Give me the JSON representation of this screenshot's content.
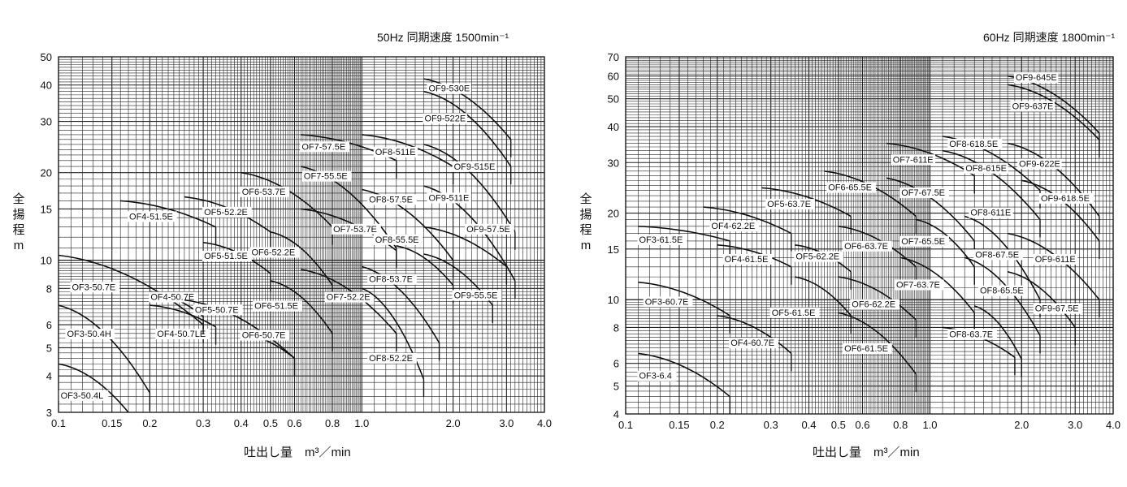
{
  "chart_data": [
    {
      "type": "line",
      "title": "50Hz 同期速度 1500min⁻¹",
      "xlabel": "吐出し量　m³／min",
      "ylabel": "全揚程 m",
      "xscale": "log",
      "yscale": "log",
      "xlim": [
        0.1,
        4.0
      ],
      "ylim": [
        3,
        50
      ],
      "grid": true,
      "xticks": [
        "0.1",
        "0.15",
        "0.2",
        "0.3",
        "0.4",
        "0.5",
        "0.6",
        "0.8",
        "1.0",
        "2.0",
        "3.0",
        "4.0"
      ],
      "yticks": [
        "3",
        "4",
        "5",
        "6",
        "8",
        "10",
        "15",
        "20",
        "30",
        "40",
        "50"
      ],
      "series": [
        {
          "name": "OF3-50.4L",
          "label_at": [
            0.101,
            3.35
          ],
          "curve": [
            [
              0.1,
              4.4
            ],
            [
              0.17,
              3.0
            ]
          ]
        },
        {
          "name": "OF3-50.4H",
          "label_at": [
            0.106,
            5.45
          ],
          "curve": [
            [
              0.1,
              7.0
            ],
            [
              0.2,
              3.5
            ]
          ]
        },
        {
          "name": "OF3-50.7E",
          "label_at": [
            0.11,
            7.9
          ],
          "curve": [
            [
              0.1,
              10.4
            ],
            [
              0.3,
              6.0
            ]
          ]
        },
        {
          "name": "OF4-51.5E",
          "label_at": [
            0.17,
            13.8
          ],
          "curve": [
            [
              0.16,
              16
            ],
            [
              0.33,
              13
            ]
          ]
        },
        {
          "name": "OF4-50.7LE",
          "label_at": [
            0.21,
            5.45
          ],
          "curve": [
            [
              0.2,
              7.0
            ],
            [
              0.33,
              5.9
            ]
          ]
        },
        {
          "name": "OF4-50.7E",
          "label_at": [
            0.2,
            7.3
          ],
          "curve": [
            [
              0.2,
              7.8
            ],
            [
              0.3,
              6.4
            ]
          ]
        },
        {
          "name": "OF5-52.2E",
          "label_at": [
            0.3,
            14.3
          ],
          "curve": [
            [
              0.26,
              16.5
            ],
            [
              0.5,
              12.5
            ]
          ]
        },
        {
          "name": "OF5-51.5E",
          "label_at": [
            0.3,
            10.1
          ],
          "curve": [
            [
              0.3,
              11.5
            ],
            [
              0.5,
              9.0
            ]
          ]
        },
        {
          "name": "OF5-50.7E",
          "label_at": [
            0.28,
            6.6
          ],
          "curve": [
            [
              0.26,
              7.3
            ],
            [
              0.6,
              4.6
            ]
          ]
        },
        {
          "name": "OF6-53.7E",
          "label_at": [
            0.4,
            16.8
          ],
          "curve": [
            [
              0.4,
              20
            ],
            [
              0.8,
              13
            ]
          ]
        },
        {
          "name": "OF6-52.2E",
          "label_at": [
            0.43,
            10.4
          ],
          "curve": [
            [
              0.5,
              12.5
            ],
            [
              0.8,
              8.2
            ]
          ]
        },
        {
          "name": "OF6-51.5E",
          "label_at": [
            0.44,
            6.8
          ],
          "curve": [
            [
              0.5,
              8.5
            ],
            [
              0.8,
              5.6
            ]
          ]
        },
        {
          "name": "OF6-50.7E",
          "label_at": [
            0.4,
            5.4
          ],
          "curve": [
            [
              0.4,
              5.6
            ],
            [
              0.6,
              4.6
            ]
          ]
        },
        {
          "name": "OF7-57.5E",
          "label_at": [
            0.63,
            24
          ],
          "curve": [
            [
              0.63,
              27
            ],
            [
              1.3,
              22
            ]
          ]
        },
        {
          "name": "OF7-55.5E",
          "label_at": [
            0.64,
            19
          ],
          "curve": [
            [
              0.63,
              21
            ],
            [
              1.3,
              11
            ]
          ]
        },
        {
          "name": "OF7-53.7E",
          "label_at": [
            0.8,
            12.5
          ],
          "curve": [
            [
              0.63,
              15
            ],
            [
              1.3,
              10.8
            ]
          ]
        },
        {
          "name": "OF7-52.2E",
          "label_at": [
            0.76,
            7.3
          ],
          "curve": [
            [
              0.63,
              9.3
            ],
            [
              1.3,
              5.6
            ]
          ]
        },
        {
          "name": "OF8-511E",
          "label_at": [
            1.1,
            23
          ],
          "curve": [
            [
              1.0,
              27
            ],
            [
              2.0,
              21
            ]
          ]
        },
        {
          "name": "OF8-57.5E",
          "label_at": [
            1.05,
            15.8
          ],
          "curve": [
            [
              1.0,
              17.5
            ],
            [
              2.0,
              10
            ]
          ]
        },
        {
          "name": "OF8-55.5E",
          "label_at": [
            1.1,
            11.5
          ],
          "curve": [
            [
              1.3,
              11.2
            ],
            [
              2.0,
              8.2
            ]
          ]
        },
        {
          "name": "OF8-53.7E",
          "label_at": [
            1.05,
            8.4
          ],
          "curve": [
            [
              1.0,
              9.5
            ],
            [
              1.8,
              5.2
            ]
          ]
        },
        {
          "name": "OF8-52.2E",
          "label_at": [
            1.05,
            4.5
          ],
          "curve": [
            [
              1.0,
              8.0
            ],
            [
              1.6,
              3.9
            ]
          ]
        },
        {
          "name": "OF9-530E",
          "label_at": [
            1.65,
            38
          ],
          "curve": [
            [
              1.6,
              42
            ],
            [
              3.1,
              26
            ]
          ]
        },
        {
          "name": "OF9-522E",
          "label_at": [
            1.6,
            30
          ],
          "curve": [
            [
              1.6,
              38
            ],
            [
              3.1,
              21
            ]
          ]
        },
        {
          "name": "OF9-515E",
          "label_at": [
            2.0,
            20.5
          ],
          "curve": [
            [
              1.6,
              25
            ],
            [
              3.2,
              12.5
            ]
          ]
        },
        {
          "name": "OF9-511E",
          "label_at": [
            1.65,
            16
          ],
          "curve": [
            [
              1.6,
              18
            ],
            [
              3.2,
              8.5
            ]
          ]
        },
        {
          "name": "OF9-57.5E",
          "label_at": [
            2.2,
            12.5
          ],
          "curve": [
            [
              1.6,
              13
            ],
            [
              3.0,
              9.5
            ]
          ]
        },
        {
          "name": "OF9-55.5E",
          "label_at": [
            2.0,
            7.4
          ],
          "curve": [
            [
              1.6,
              10.5
            ],
            [
              2.7,
              7.0
            ]
          ]
        }
      ]
    },
    {
      "type": "line",
      "title": "60Hz 同期速度 1800min⁻¹",
      "xlabel": "吐出し量　m³／min",
      "ylabel": "全揚程 m",
      "xscale": "log",
      "yscale": "log",
      "xlim": [
        0.1,
        4.0
      ],
      "ylim": [
        4,
        70
      ],
      "grid": true,
      "xticks": [
        "0.1",
        "0.15",
        "0.2",
        "0.3",
        "0.4",
        "0.5",
        "0.6",
        "0.8",
        "1.0",
        "2.0",
        "3.0",
        "4.0"
      ],
      "yticks": [
        "4",
        "5",
        "6",
        "8",
        "10",
        "15",
        "20",
        "30",
        "40",
        "50",
        "60",
        "70"
      ],
      "series": [
        {
          "name": "OF3-6.4",
          "label_at": [
            0.11,
            5.3
          ],
          "curve": [
            [
              0.11,
              6.5
            ],
            [
              0.22,
              4.6
            ]
          ]
        },
        {
          "name": "OF3-60.7E",
          "label_at": [
            0.115,
            9.6
          ],
          "curve": [
            [
              0.11,
              11.5
            ],
            [
              0.22,
              8.8
            ]
          ]
        },
        {
          "name": "OF3-61.5E",
          "label_at": [
            0.11,
            15.8
          ],
          "curve": [
            [
              0.11,
              18
            ],
            [
              0.22,
              16
            ]
          ]
        },
        {
          "name": "OF4-62.2E",
          "label_at": [
            0.19,
            17.6
          ],
          "curve": [
            [
              0.18,
              21
            ],
            [
              0.35,
              17
            ]
          ]
        },
        {
          "name": "OF4-61.5E",
          "label_at": [
            0.21,
            13.5
          ],
          "curve": [
            [
              0.2,
              15.5
            ],
            [
              0.35,
              13
            ]
          ]
        },
        {
          "name": "OF4-60.7E",
          "label_at": [
            0.22,
            6.9
          ],
          "curve": [
            [
              0.2,
              8.8
            ],
            [
              0.35,
              6.5
            ]
          ]
        },
        {
          "name": "OF5-63.7E",
          "label_at": [
            0.29,
            21
          ],
          "curve": [
            [
              0.28,
              24.5
            ],
            [
              0.55,
              19.5
            ]
          ]
        },
        {
          "name": "OF5-62.2E",
          "label_at": [
            0.36,
            13.8
          ],
          "curve": [
            [
              0.36,
              15.5
            ],
            [
              0.55,
              12.5
            ]
          ]
        },
        {
          "name": "OF5-61.5E",
          "label_at": [
            0.3,
            8.8
          ],
          "curve": [
            [
              0.36,
              12
            ],
            [
              0.55,
              8.8
            ]
          ]
        },
        {
          "name": "OF6-65.5E",
          "label_at": [
            0.46,
            24
          ],
          "curve": [
            [
              0.45,
              28
            ],
            [
              0.9,
              19.5
            ]
          ]
        },
        {
          "name": "OF6-63.7E",
          "label_at": [
            0.52,
            15
          ],
          "curve": [
            [
              0.5,
              18
            ],
            [
              0.9,
              13
            ]
          ]
        },
        {
          "name": "OF6-62.2E",
          "label_at": [
            0.55,
            9.4
          ],
          "curve": [
            [
              0.5,
              12
            ],
            [
              0.9,
              8.5
            ]
          ]
        },
        {
          "name": "OF6-61.5E",
          "label_at": [
            0.52,
            6.6
          ],
          "curve": [
            [
              0.5,
              9
            ],
            [
              0.9,
              5.5
            ]
          ]
        },
        {
          "name": "OF7-611E",
          "label_at": [
            0.75,
            30
          ],
          "curve": [
            [
              0.72,
              35
            ],
            [
              1.4,
              27
            ]
          ]
        },
        {
          "name": "OF7-67.5E",
          "label_at": [
            0.8,
            23
          ],
          "curve": [
            [
              0.72,
              26.5
            ],
            [
              1.4,
              16
            ]
          ]
        },
        {
          "name": "OF7-65.5E",
          "label_at": [
            0.8,
            15.6
          ],
          "curve": [
            [
              0.9,
              19
            ],
            [
              1.4,
              13
            ]
          ]
        },
        {
          "name": "OF7-63.7E",
          "label_at": [
            0.77,
            11
          ],
          "curve": [
            [
              0.8,
              14
            ],
            [
              1.4,
              9
            ]
          ]
        },
        {
          "name": "OF8-618.5E",
          "label_at": [
            1.15,
            34
          ],
          "curve": [
            [
              1.1,
              37
            ],
            [
              2.3,
              24
            ]
          ]
        },
        {
          "name": "OF8-615E",
          "label_at": [
            1.3,
            28
          ],
          "curve": [
            [
              1.1,
              33
            ],
            [
              2.3,
              19
            ]
          ]
        },
        {
          "name": "OF8-611E",
          "label_at": [
            1.35,
            19.6
          ],
          "curve": [
            [
              1.3,
              19.5
            ],
            [
              2.3,
              10
            ]
          ]
        },
        {
          "name": "OF8-67.5E",
          "label_at": [
            1.4,
            14
          ],
          "curve": [
            [
              1.3,
              14
            ],
            [
              2.3,
              7.5
            ]
          ]
        },
        {
          "name": "OF8-65.5E",
          "label_at": [
            1.45,
            10.5
          ],
          "curve": [
            [
              1.4,
              9.5
            ],
            [
              2.0,
              6.2
            ]
          ]
        },
        {
          "name": "OF8-63.7E",
          "label_at": [
            1.15,
            7.4
          ],
          "curve": [
            [
              1.1,
              8.0
            ],
            [
              1.9,
              6.3
            ]
          ]
        },
        {
          "name": "OF9-645E",
          "label_at": [
            1.9,
            58
          ],
          "curve": [
            [
              1.8,
              60
            ],
            [
              3.6,
              38
            ]
          ]
        },
        {
          "name": "OF9-637E",
          "label_at": [
            1.85,
            46
          ],
          "curve": [
            [
              1.8,
              56
            ],
            [
              3.6,
              36
            ]
          ]
        },
        {
          "name": "OF9-622E",
          "label_at": [
            1.95,
            29
          ],
          "curve": [
            [
              1.8,
              35
            ],
            [
              3.6,
              19.5
            ]
          ]
        },
        {
          "name": "OF9-618.5E",
          "label_at": [
            2.3,
            22
          ],
          "curve": [
            [
              2.0,
              26
            ],
            [
              3.6,
              16
            ]
          ]
        },
        {
          "name": "OF9-611E",
          "label_at": [
            2.2,
            13.5
          ],
          "curve": [
            [
              1.8,
              17
            ],
            [
              3.6,
              10
            ]
          ]
        },
        {
          "name": "OF9-67.5E",
          "label_at": [
            2.2,
            9.1
          ],
          "curve": [
            [
              1.8,
              12.5
            ],
            [
              3.0,
              8.0
            ]
          ]
        }
      ]
    }
  ]
}
